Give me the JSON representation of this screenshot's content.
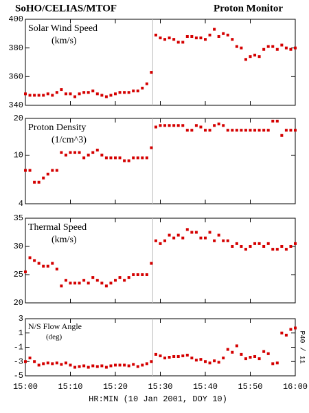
{
  "header": {
    "title": "SoHO/CELIAS/MTOF",
    "right_title": "Proton Monitor"
  },
  "x_axis": {
    "label": "HR:MIN (10 Jan 2001, DOY 10)",
    "xlim": [
      0,
      60
    ],
    "xticks": [
      {
        "value": 0,
        "label": "15:00"
      },
      {
        "value": 10,
        "label": "15:10"
      },
      {
        "value": 20,
        "label": "15:20"
      },
      {
        "value": 30,
        "label": "15:30"
      },
      {
        "value": 40,
        "label": "15:40"
      },
      {
        "value": 50,
        "label": "15:50"
      },
      {
        "value": 60,
        "label": "16:00"
      }
    ],
    "marker_x": 28.3,
    "x": [
      0,
      1,
      2,
      3,
      4,
      5,
      6,
      7,
      8,
      9,
      10,
      11,
      12,
      13,
      14,
      15,
      16,
      17,
      18,
      19,
      20,
      21,
      22,
      23,
      24,
      25,
      26,
      27,
      28,
      29,
      30,
      31,
      32,
      33,
      34,
      35,
      36,
      37,
      38,
      39,
      40,
      41,
      42,
      43,
      44,
      45,
      46,
      47,
      48,
      49,
      50,
      51,
      52,
      53,
      54,
      55,
      56,
      57,
      58,
      59,
      60
    ]
  },
  "chart_data": [
    {
      "type": "scatter",
      "title": "Solar Wind Speed",
      "subtitle": "(km/s)",
      "color": "#d40000",
      "ylim": [
        340,
        400
      ],
      "yticks": [
        340,
        360,
        380,
        400
      ],
      "values": [
        348,
        347,
        347,
        347,
        347,
        348,
        347,
        349,
        351,
        348,
        348,
        346,
        348,
        349,
        349,
        350,
        348,
        347,
        346,
        347,
        348,
        349,
        349,
        349,
        350,
        350,
        352,
        355,
        363,
        389,
        387,
        386,
        387,
        386,
        384,
        384,
        388,
        388,
        387,
        387,
        386,
        389,
        393,
        388,
        390,
        389,
        386,
        381,
        380,
        372,
        374,
        375,
        374,
        379,
        381,
        381,
        379,
        382,
        380,
        379,
        380
      ]
    },
    {
      "type": "scatter",
      "title": "Proton Density",
      "subtitle": "(1/cm^3)",
      "color": "#d40000",
      "log": true,
      "ylim": [
        4,
        20
      ],
      "yticks": [
        4,
        10,
        20
      ],
      "values": [
        7.5,
        7.5,
        6,
        6,
        6.5,
        7,
        7.5,
        7.5,
        10.5,
        10,
        10.5,
        10.5,
        10.5,
        9.5,
        10,
        10.5,
        11,
        10,
        9.5,
        9.5,
        9.5,
        9.5,
        9,
        9,
        9.5,
        9.5,
        9.5,
        9.5,
        11.5,
        17,
        17.5,
        17.5,
        17.5,
        17.5,
        17.5,
        17.5,
        16,
        16,
        17.5,
        17,
        16,
        16,
        17.5,
        18,
        17.5,
        16,
        16,
        16,
        16,
        16,
        16,
        16,
        16,
        16,
        16,
        19,
        19,
        14.5,
        16,
        16,
        16
      ]
    },
    {
      "type": "scatter",
      "title": "Thermal Speed",
      "subtitle": "(km/s)",
      "color": "#d40000",
      "ylim": [
        20,
        35
      ],
      "yticks": [
        20,
        25,
        30,
        35
      ],
      "values": [
        25.5,
        28,
        27.5,
        27,
        26.5,
        26.5,
        27,
        26,
        23,
        24,
        23.5,
        23.5,
        23.5,
        24,
        23.5,
        24.5,
        24,
        23.5,
        23,
        23.5,
        24,
        24.5,
        24,
        24.5,
        25,
        25,
        25,
        25,
        27,
        31,
        30.5,
        31,
        32,
        31.5,
        32,
        31.5,
        33,
        32.5,
        32.5,
        31.5,
        31.5,
        32.5,
        31,
        32,
        31,
        31,
        30,
        30.5,
        30,
        29.5,
        30,
        30.5,
        30.5,
        30,
        30.5,
        29.5,
        29.5,
        30,
        29.5,
        30,
        30.5
      ]
    },
    {
      "type": "scatter",
      "title": "N/S Flow Angle",
      "subtitle": "(deg)",
      "annotation": "P40 / 11",
      "color": "#d40000",
      "ylim": [
        -5,
        3
      ],
      "yticks": [
        -5,
        -3,
        -1,
        1,
        3
      ],
      "values": [
        -3,
        -2.5,
        -3,
        -3.5,
        -3.3,
        -3.2,
        -3.3,
        -3.2,
        -3.4,
        -3.2,
        -3.5,
        -3.8,
        -3.7,
        -3.6,
        -3.8,
        -3.6,
        -3.7,
        -3.6,
        -3.8,
        -3.6,
        -3.5,
        -3.5,
        -3.5,
        -3.6,
        -3.4,
        -3.7,
        -3.5,
        -3.3,
        -3,
        -2,
        -2.2,
        -2.5,
        -2.4,
        -2.3,
        -2.3,
        -2.2,
        -2.1,
        -2.5,
        -2.8,
        -2.7,
        -3,
        -3.2,
        -2.9,
        -3.1,
        -2.5,
        -1.3,
        -1.7,
        -0.8,
        -2,
        -2.6,
        -2.4,
        -2.3,
        -2.6,
        -1.6,
        -1.9,
        -3.3,
        -3.2,
        1,
        0.7,
        1.5,
        1.7
      ]
    }
  ]
}
